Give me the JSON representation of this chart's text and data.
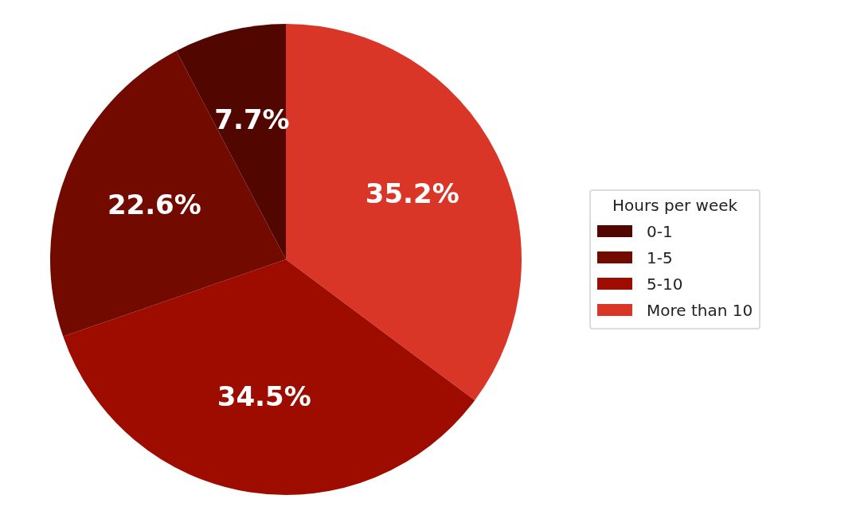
{
  "chart_data": {
    "type": "pie",
    "legend_title": "Hours per week",
    "legend": "right",
    "categories": [
      "0-1",
      "1-5",
      "5-10",
      "More than 10"
    ],
    "values": [
      7.7,
      22.6,
      34.5,
      35.2
    ],
    "colors": [
      "#520600",
      "#720a00",
      "#9e0c00",
      "#d93628"
    ],
    "value_labels": [
      "7.7%",
      "22.6%",
      "34.5%",
      "35.2%"
    ]
  }
}
